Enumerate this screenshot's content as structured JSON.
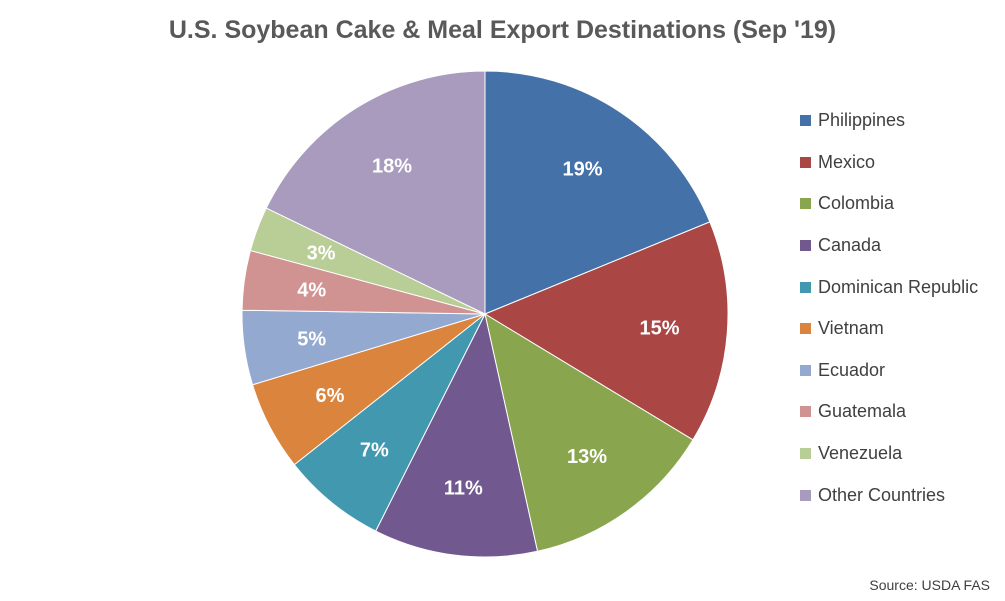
{
  "chart_data": {
    "type": "pie",
    "title": "U.S. Soybean Cake & Meal Export Destinations (Sep '19)",
    "categories": [
      "Philippines",
      "Mexico",
      "Colombia",
      "Canada",
      "Dominican Republic",
      "Vietnam",
      "Ecuador",
      "Guatemala",
      "Venezuela",
      "Other Countries"
    ],
    "values": [
      19,
      15,
      13,
      11,
      7,
      6,
      5,
      4,
      3,
      18
    ],
    "labels": [
      "19%",
      "15%",
      "13%",
      "11%",
      "7%",
      "6%",
      "5%",
      "4%",
      "3%",
      "18%"
    ],
    "colors": [
      "#4472a8",
      "#aa4644",
      "#89a54e",
      "#71588f",
      "#4198af",
      "#db843d",
      "#93a9cf",
      "#d19392",
      "#b9cd96",
      "#a99bbd"
    ],
    "legend_position": "right",
    "source": "Source: USDA FAS"
  }
}
